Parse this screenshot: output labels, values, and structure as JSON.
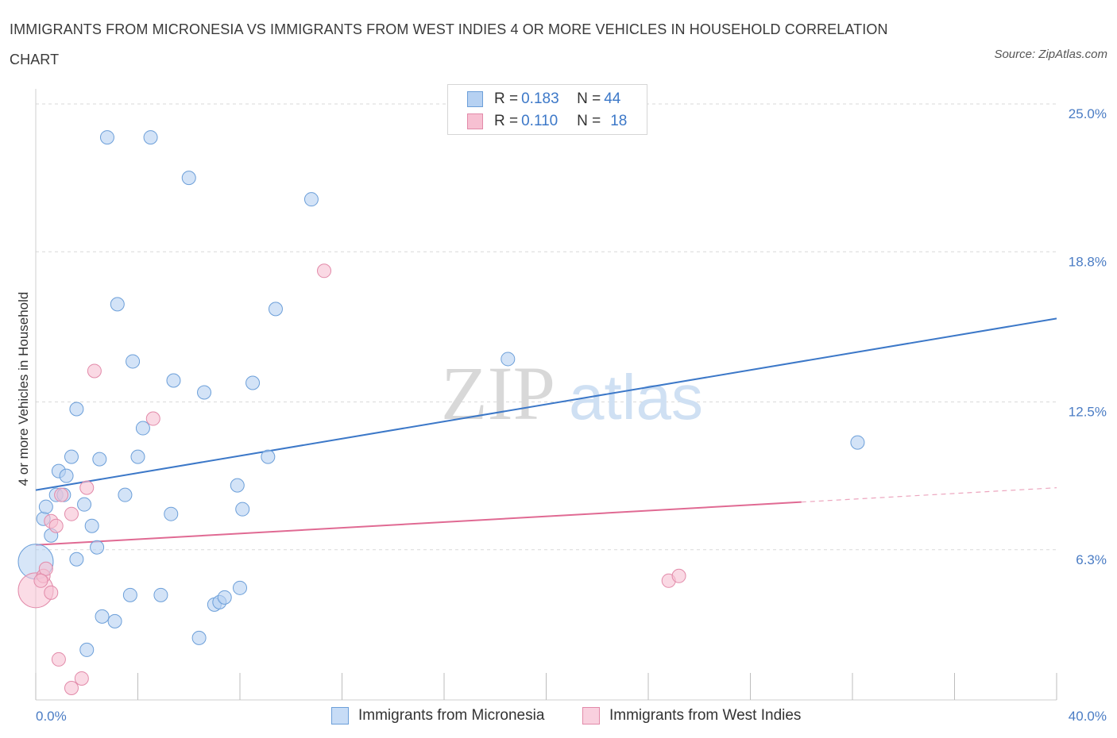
{
  "title": "IMMIGRANTS FROM MICRONESIA VS IMMIGRANTS FROM WEST INDIES 4 OR MORE VEHICLES IN HOUSEHOLD CORRELATION CHART",
  "source": "Source: ZipAtlas.com",
  "watermark": {
    "zip": "ZIP",
    "atlas": "atlas"
  },
  "colors": {
    "blue": "#3c78c8",
    "blue_fill": "#b6d1f2",
    "pink": "#e06a93",
    "pink_fill": "#f7c0d2"
  },
  "legend": {
    "rows": [
      {
        "r_label": "R = ",
        "r_value": "0.183",
        "n_label": "N = ",
        "n_value": "44"
      },
      {
        "r_label": "R = ",
        "r_value": "0.110",
        "n_label": "N = ",
        "n_value": "18"
      }
    ]
  },
  "chart_data": {
    "type": "scatter",
    "title": "IMMIGRANTS FROM MICRONESIA VS IMMIGRANTS FROM WEST INDIES 4 OR MORE VEHICLES IN HOUSEHOLD CORRELATION CHART",
    "xlabel": "",
    "ylabel": "4 or more Vehicles in Household",
    "xlim": [
      0,
      40
    ],
    "ylim": [
      0,
      25.5
    ],
    "x_tick_labels": [
      "0.0%",
      "40.0%"
    ],
    "y_ticks": [
      6.3,
      12.5,
      18.8,
      25.0
    ],
    "y_tick_labels": [
      "6.3%",
      "12.5%",
      "18.8%",
      "25.0%"
    ],
    "grid": true,
    "legend_position": "top-center",
    "series": [
      {
        "name": "Immigrants from Micronesia",
        "color": "#3c78c8",
        "r": 0.183,
        "n": 44,
        "trend": {
          "x": [
            0,
            40
          ],
          "y": [
            8.8,
            16.0
          ]
        },
        "points": [
          {
            "x": 0.0,
            "y": 5.8,
            "big": true
          },
          {
            "x": 0.3,
            "y": 7.6
          },
          {
            "x": 0.4,
            "y": 8.1
          },
          {
            "x": 0.6,
            "y": 6.9
          },
          {
            "x": 0.8,
            "y": 8.6
          },
          {
            "x": 0.9,
            "y": 9.6
          },
          {
            "x": 1.1,
            "y": 8.6
          },
          {
            "x": 1.2,
            "y": 9.4
          },
          {
            "x": 1.4,
            "y": 10.2
          },
          {
            "x": 1.6,
            "y": 12.2
          },
          {
            "x": 1.6,
            "y": 5.9
          },
          {
            "x": 1.9,
            "y": 8.2
          },
          {
            "x": 2.0,
            "y": 2.1
          },
          {
            "x": 2.2,
            "y": 7.3
          },
          {
            "x": 2.4,
            "y": 6.4
          },
          {
            "x": 2.5,
            "y": 10.1
          },
          {
            "x": 2.6,
            "y": 3.5
          },
          {
            "x": 2.8,
            "y": 23.6
          },
          {
            "x": 3.1,
            "y": 3.3
          },
          {
            "x": 3.2,
            "y": 16.6
          },
          {
            "x": 3.5,
            "y": 8.6
          },
          {
            "x": 3.7,
            "y": 4.4
          },
          {
            "x": 3.8,
            "y": 14.2
          },
          {
            "x": 4.0,
            "y": 10.2
          },
          {
            "x": 4.2,
            "y": 11.4
          },
          {
            "x": 4.5,
            "y": 23.6
          },
          {
            "x": 4.9,
            "y": 4.4
          },
          {
            "x": 5.3,
            "y": 7.8
          },
          {
            "x": 5.4,
            "y": 13.4
          },
          {
            "x": 6.0,
            "y": 21.9
          },
          {
            "x": 6.4,
            "y": 2.6
          },
          {
            "x": 6.6,
            "y": 12.9
          },
          {
            "x": 7.0,
            "y": 4.0
          },
          {
            "x": 7.2,
            "y": 4.1
          },
          {
            "x": 7.4,
            "y": 4.3
          },
          {
            "x": 7.9,
            "y": 9.0
          },
          {
            "x": 8.0,
            "y": 4.7
          },
          {
            "x": 8.1,
            "y": 8.0
          },
          {
            "x": 8.5,
            "y": 13.3
          },
          {
            "x": 9.1,
            "y": 10.2
          },
          {
            "x": 9.4,
            "y": 16.4
          },
          {
            "x": 10.8,
            "y": 21.0
          },
          {
            "x": 18.5,
            "y": 14.3
          },
          {
            "x": 32.2,
            "y": 10.8
          }
        ]
      },
      {
        "name": "Immigrants from West Indies",
        "color": "#e06a93",
        "r": 0.11,
        "n": 18,
        "trend": {
          "x": [
            0,
            30
          ],
          "y": [
            6.5,
            8.3
          ]
        },
        "trend_dashed": {
          "x": [
            30,
            40
          ],
          "y": [
            8.3,
            8.9
          ]
        },
        "points": [
          {
            "x": 0.0,
            "y": 4.6,
            "big": true
          },
          {
            "x": 0.3,
            "y": 5.2
          },
          {
            "x": 0.4,
            "y": 5.5
          },
          {
            "x": 0.6,
            "y": 4.5
          },
          {
            "x": 0.6,
            "y": 7.5
          },
          {
            "x": 0.8,
            "y": 7.3
          },
          {
            "x": 0.9,
            "y": 1.7
          },
          {
            "x": 1.0,
            "y": 8.6
          },
          {
            "x": 1.4,
            "y": 0.5
          },
          {
            "x": 1.4,
            "y": 7.8
          },
          {
            "x": 1.8,
            "y": 0.9
          },
          {
            "x": 2.0,
            "y": 8.9
          },
          {
            "x": 2.3,
            "y": 13.8
          },
          {
            "x": 4.6,
            "y": 11.8
          },
          {
            "x": 11.3,
            "y": 18.0
          },
          {
            "x": 24.8,
            "y": 5.0
          },
          {
            "x": 25.2,
            "y": 5.2
          },
          {
            "x": 0.2,
            "y": 5.0
          }
        ]
      }
    ]
  }
}
